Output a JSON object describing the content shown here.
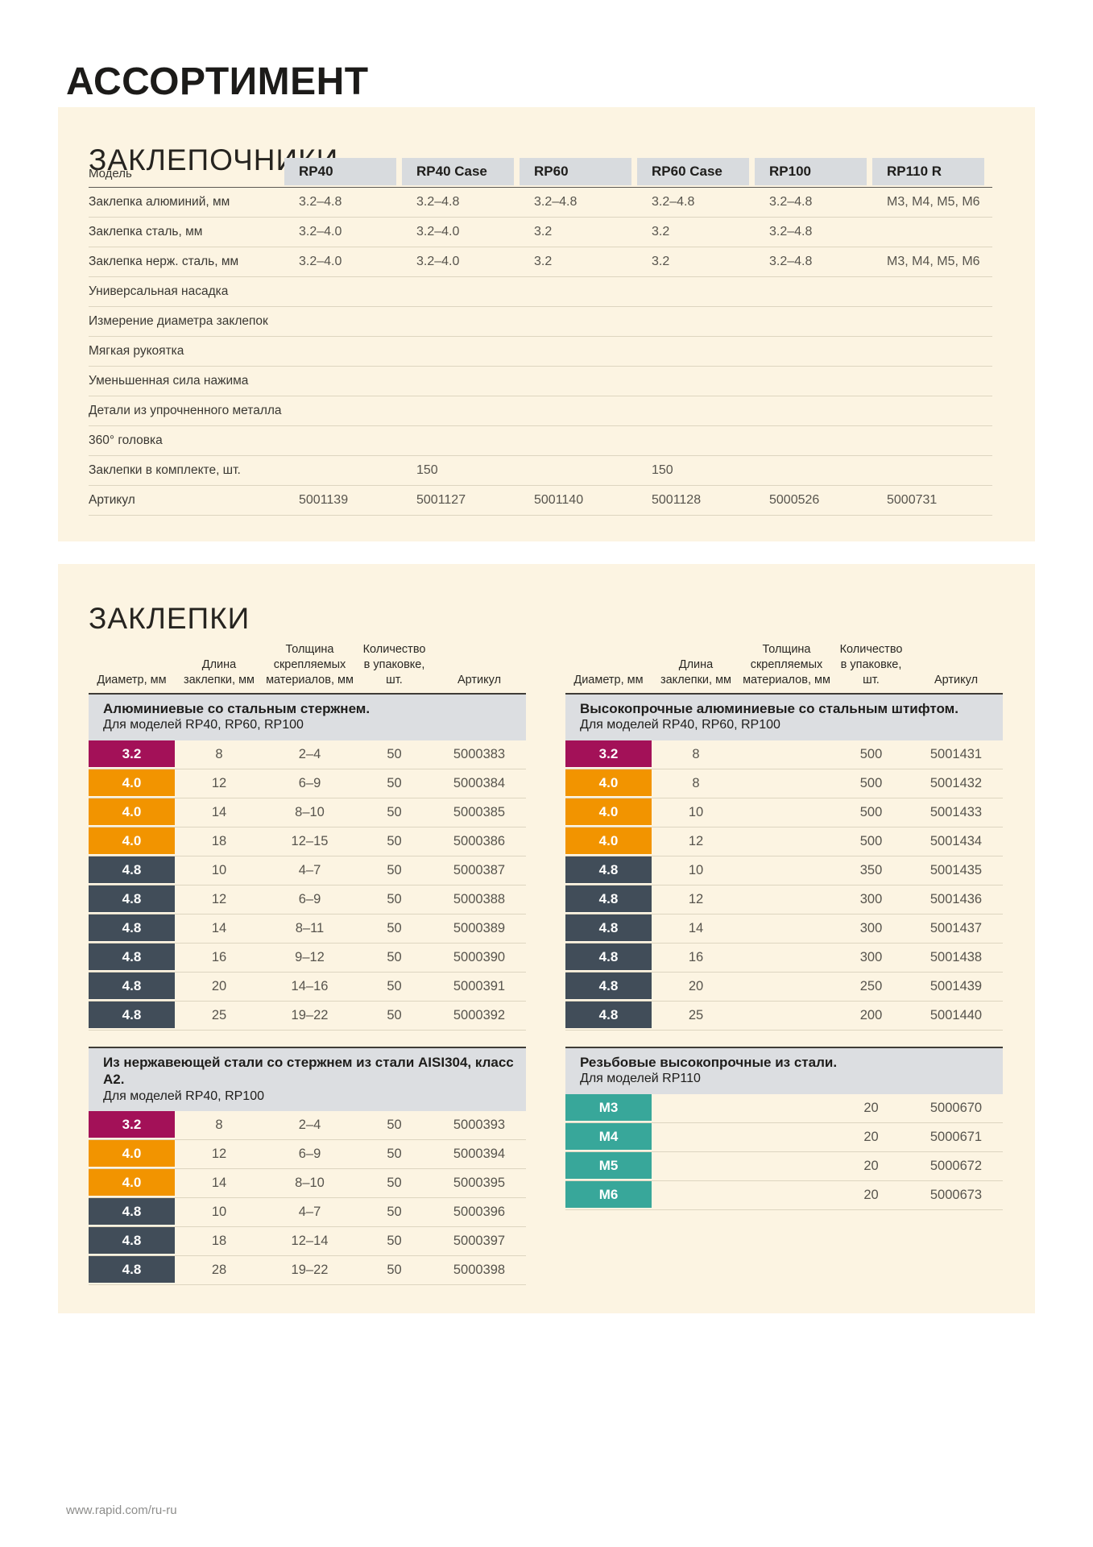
{
  "page": {
    "title": "АССОРТИМЕНТ",
    "footer_url": "www.rapid.com/ru-ru"
  },
  "colors": {
    "panel_bg": "#fcf4e2",
    "header_cell_bg": "#d8dbde",
    "band_bg": "#dcdee1",
    "feature_dot": "#fdc60b",
    "diameter_colors": {
      "3.2": "#a31158",
      "4.0": "#f29400",
      "4.8": "#414d59",
      "M": "#38a79a"
    }
  },
  "riveters": {
    "section_title": "ЗАКЛЕПОЧНИКИ",
    "columns": [
      "Модель",
      "RP40",
      "RP40 Case",
      "RP60",
      "RP60 Case",
      "RP100",
      "RP110 R"
    ],
    "rows": [
      {
        "label": "Заклепка алюминий, мм",
        "type": "text",
        "values": [
          "3.2–4.8",
          "3.2–4.8",
          "3.2–4.8",
          "3.2–4.8",
          "3.2–4.8",
          "M3, M4, M5, M6"
        ]
      },
      {
        "label": "Заклепка сталь, мм",
        "type": "text",
        "values": [
          "3.2–4.0",
          "3.2–4.0",
          "3.2",
          "3.2",
          "3.2–4.8",
          ""
        ]
      },
      {
        "label": "Заклепка нерж. сталь, мм",
        "type": "text",
        "values": [
          "3.2–4.0",
          "3.2–4.0",
          "3.2",
          "3.2",
          "3.2–4.8",
          "M3, M4, M5, M6"
        ]
      },
      {
        "label": "Универсальная насадка",
        "type": "dot",
        "values": [
          true,
          true,
          true,
          true,
          false,
          false
        ]
      },
      {
        "label": "Измерение диаметра заклепок",
        "type": "dot",
        "values": [
          true,
          true,
          true,
          true,
          false,
          false
        ]
      },
      {
        "label": "Мягкая рукоятка",
        "type": "dot",
        "values": [
          true,
          true,
          true,
          true,
          true,
          false
        ]
      },
      {
        "label": "Уменьшенная сила нажима",
        "type": "dot",
        "values": [
          false,
          false,
          false,
          false,
          true,
          false
        ]
      },
      {
        "label": "Детали из упрочненного металла",
        "type": "dot",
        "values": [
          true,
          true,
          true,
          true,
          true,
          true
        ]
      },
      {
        "label": "360° головка",
        "type": "dot",
        "values": [
          false,
          false,
          true,
          true,
          false,
          false
        ]
      },
      {
        "label": "Заклепки в комплекте, шт.",
        "type": "text",
        "values": [
          "",
          "150",
          "",
          "150",
          "",
          ""
        ]
      },
      {
        "label": "Артикул",
        "type": "text",
        "values": [
          "5001139",
          "5001127",
          "5001140",
          "5001128",
          "5000526",
          "5000731"
        ]
      }
    ]
  },
  "rivets": {
    "section_title": "ЗАКЛЕПКИ",
    "column_headers": [
      "Диаметр, мм",
      "Длина\nзаклепки, мм",
      "Толщина\nскрепляемых\nматериалов, мм",
      "Количество\nв упаковке, шт.",
      "Артикул"
    ],
    "tables": [
      {
        "title": "Алюминиевые со стальным стержнем.",
        "subtitle": "Для моделей RP40, RP60, RP100",
        "rows": [
          [
            "3.2",
            "8",
            "2–4",
            "50",
            "5000383"
          ],
          [
            "4.0",
            "12",
            "6–9",
            "50",
            "5000384"
          ],
          [
            "4.0",
            "14",
            "8–10",
            "50",
            "5000385"
          ],
          [
            "4.0",
            "18",
            "12–15",
            "50",
            "5000386"
          ],
          [
            "4.8",
            "10",
            "4–7",
            "50",
            "5000387"
          ],
          [
            "4.8",
            "12",
            "6–9",
            "50",
            "5000388"
          ],
          [
            "4.8",
            "14",
            "8–11",
            "50",
            "5000389"
          ],
          [
            "4.8",
            "16",
            "9–12",
            "50",
            "5000390"
          ],
          [
            "4.8",
            "20",
            "14–16",
            "50",
            "5000391"
          ],
          [
            "4.8",
            "25",
            "19–22",
            "50",
            "5000392"
          ]
        ]
      },
      {
        "title": "Высокопрочные алюминиевые со стальным штифтом.",
        "subtitle": "Для моделей RP40, RP60, RP100",
        "rows": [
          [
            "3.2",
            "8",
            "",
            "500",
            "5001431"
          ],
          [
            "4.0",
            "8",
            "",
            "500",
            "5001432"
          ],
          [
            "4.0",
            "10",
            "",
            "500",
            "5001433"
          ],
          [
            "4.0",
            "12",
            "",
            "500",
            "5001434"
          ],
          [
            "4.8",
            "10",
            "",
            "350",
            "5001435"
          ],
          [
            "4.8",
            "12",
            "",
            "300",
            "5001436"
          ],
          [
            "4.8",
            "14",
            "",
            "300",
            "5001437"
          ],
          [
            "4.8",
            "16",
            "",
            "300",
            "5001438"
          ],
          [
            "4.8",
            "20",
            "",
            "250",
            "5001439"
          ],
          [
            "4.8",
            "25",
            "",
            "200",
            "5001440"
          ]
        ]
      },
      {
        "title": "Из нержавеющей стали со стержнем из стали AISI304, класс А2.",
        "subtitle": "Для моделей RP40, RP100",
        "rows": [
          [
            "3.2",
            "8",
            "2–4",
            "50",
            "5000393"
          ],
          [
            "4.0",
            "12",
            "6–9",
            "50",
            "5000394"
          ],
          [
            "4.0",
            "14",
            "8–10",
            "50",
            "5000395"
          ],
          [
            "4.8",
            "10",
            "4–7",
            "50",
            "5000396"
          ],
          [
            "4.8",
            "18",
            "12–14",
            "50",
            "5000397"
          ],
          [
            "4.8",
            "28",
            "19–22",
            "50",
            "5000398"
          ]
        ]
      },
      {
        "title": "Резьбовые высокопрочные из стали.",
        "subtitle": "Для моделей RP110",
        "rows": [
          [
            "M3",
            "",
            "",
            "20",
            "5000670"
          ],
          [
            "M4",
            "",
            "",
            "20",
            "5000671"
          ],
          [
            "M5",
            "",
            "",
            "20",
            "5000672"
          ],
          [
            "M6",
            "",
            "",
            "20",
            "5000673"
          ]
        ]
      }
    ]
  }
}
